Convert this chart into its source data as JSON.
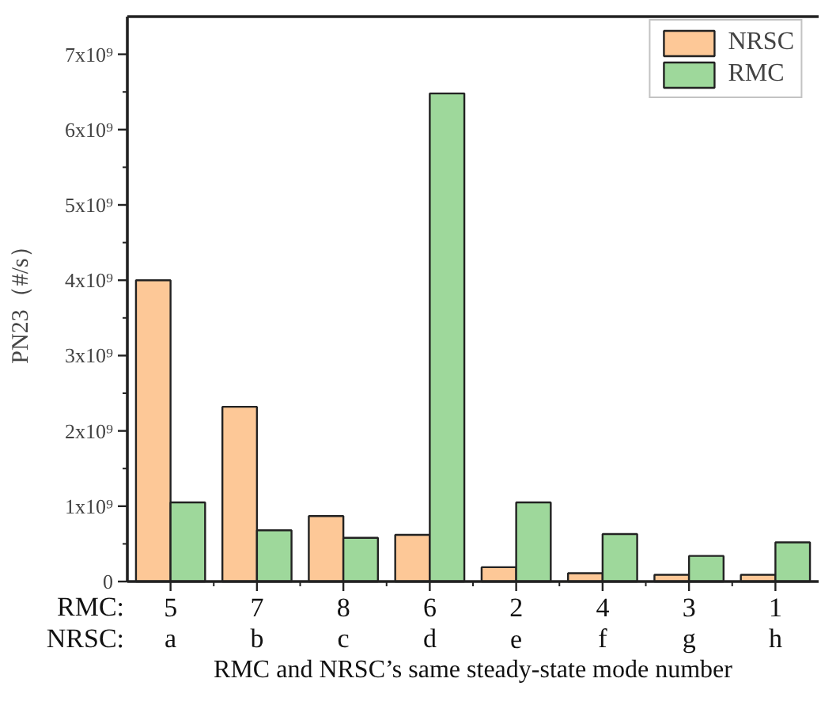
{
  "chart_data": {
    "type": "bar",
    "xlabel": "RMC and NRSC’s same steady-state mode number",
    "ylabel": "PN23（#/s）",
    "categories": [
      "5\na",
      "7\nb",
      "8\nc",
      "6\nd",
      "2\ne",
      "4\nf",
      "3\ng",
      "1\nh"
    ],
    "annotations": [
      "RMC:",
      "NRSC:"
    ],
    "series": [
      {
        "name": "NRSC",
        "color": "#fdc897",
        "values": [
          4000000000.0,
          2320000000.0,
          870000000.0,
          620000000.0,
          190000000.0,
          110000000.0,
          90000000.0,
          90000000.0
        ]
      },
      {
        "name": "RMC",
        "color": "#9ed89b",
        "values": [
          1050000000.0,
          680000000.0,
          580000000.0,
          6480000000.0,
          1050000000.0,
          630000000.0,
          340000000.0,
          520000000.0
        ]
      }
    ],
    "ylim": [
      0,
      7500000000.0
    ],
    "yticks": [
      0,
      {
        "value": 1000000000.0,
        "label": "1x10⁹"
      },
      {
        "value": 2000000000.0,
        "label": "2x10⁹"
      },
      {
        "value": 3000000000.0,
        "label": "3x10⁹"
      },
      {
        "value": 4000000000.0,
        "label": "4x10⁹"
      },
      {
        "value": 5000000000.0,
        "label": "5x10⁹"
      },
      {
        "value": 6000000000.0,
        "label": "6x10⁹"
      },
      {
        "value": 7000000000.0,
        "label": "7x10⁹"
      }
    ],
    "legend": "top right",
    "grid": false
  }
}
